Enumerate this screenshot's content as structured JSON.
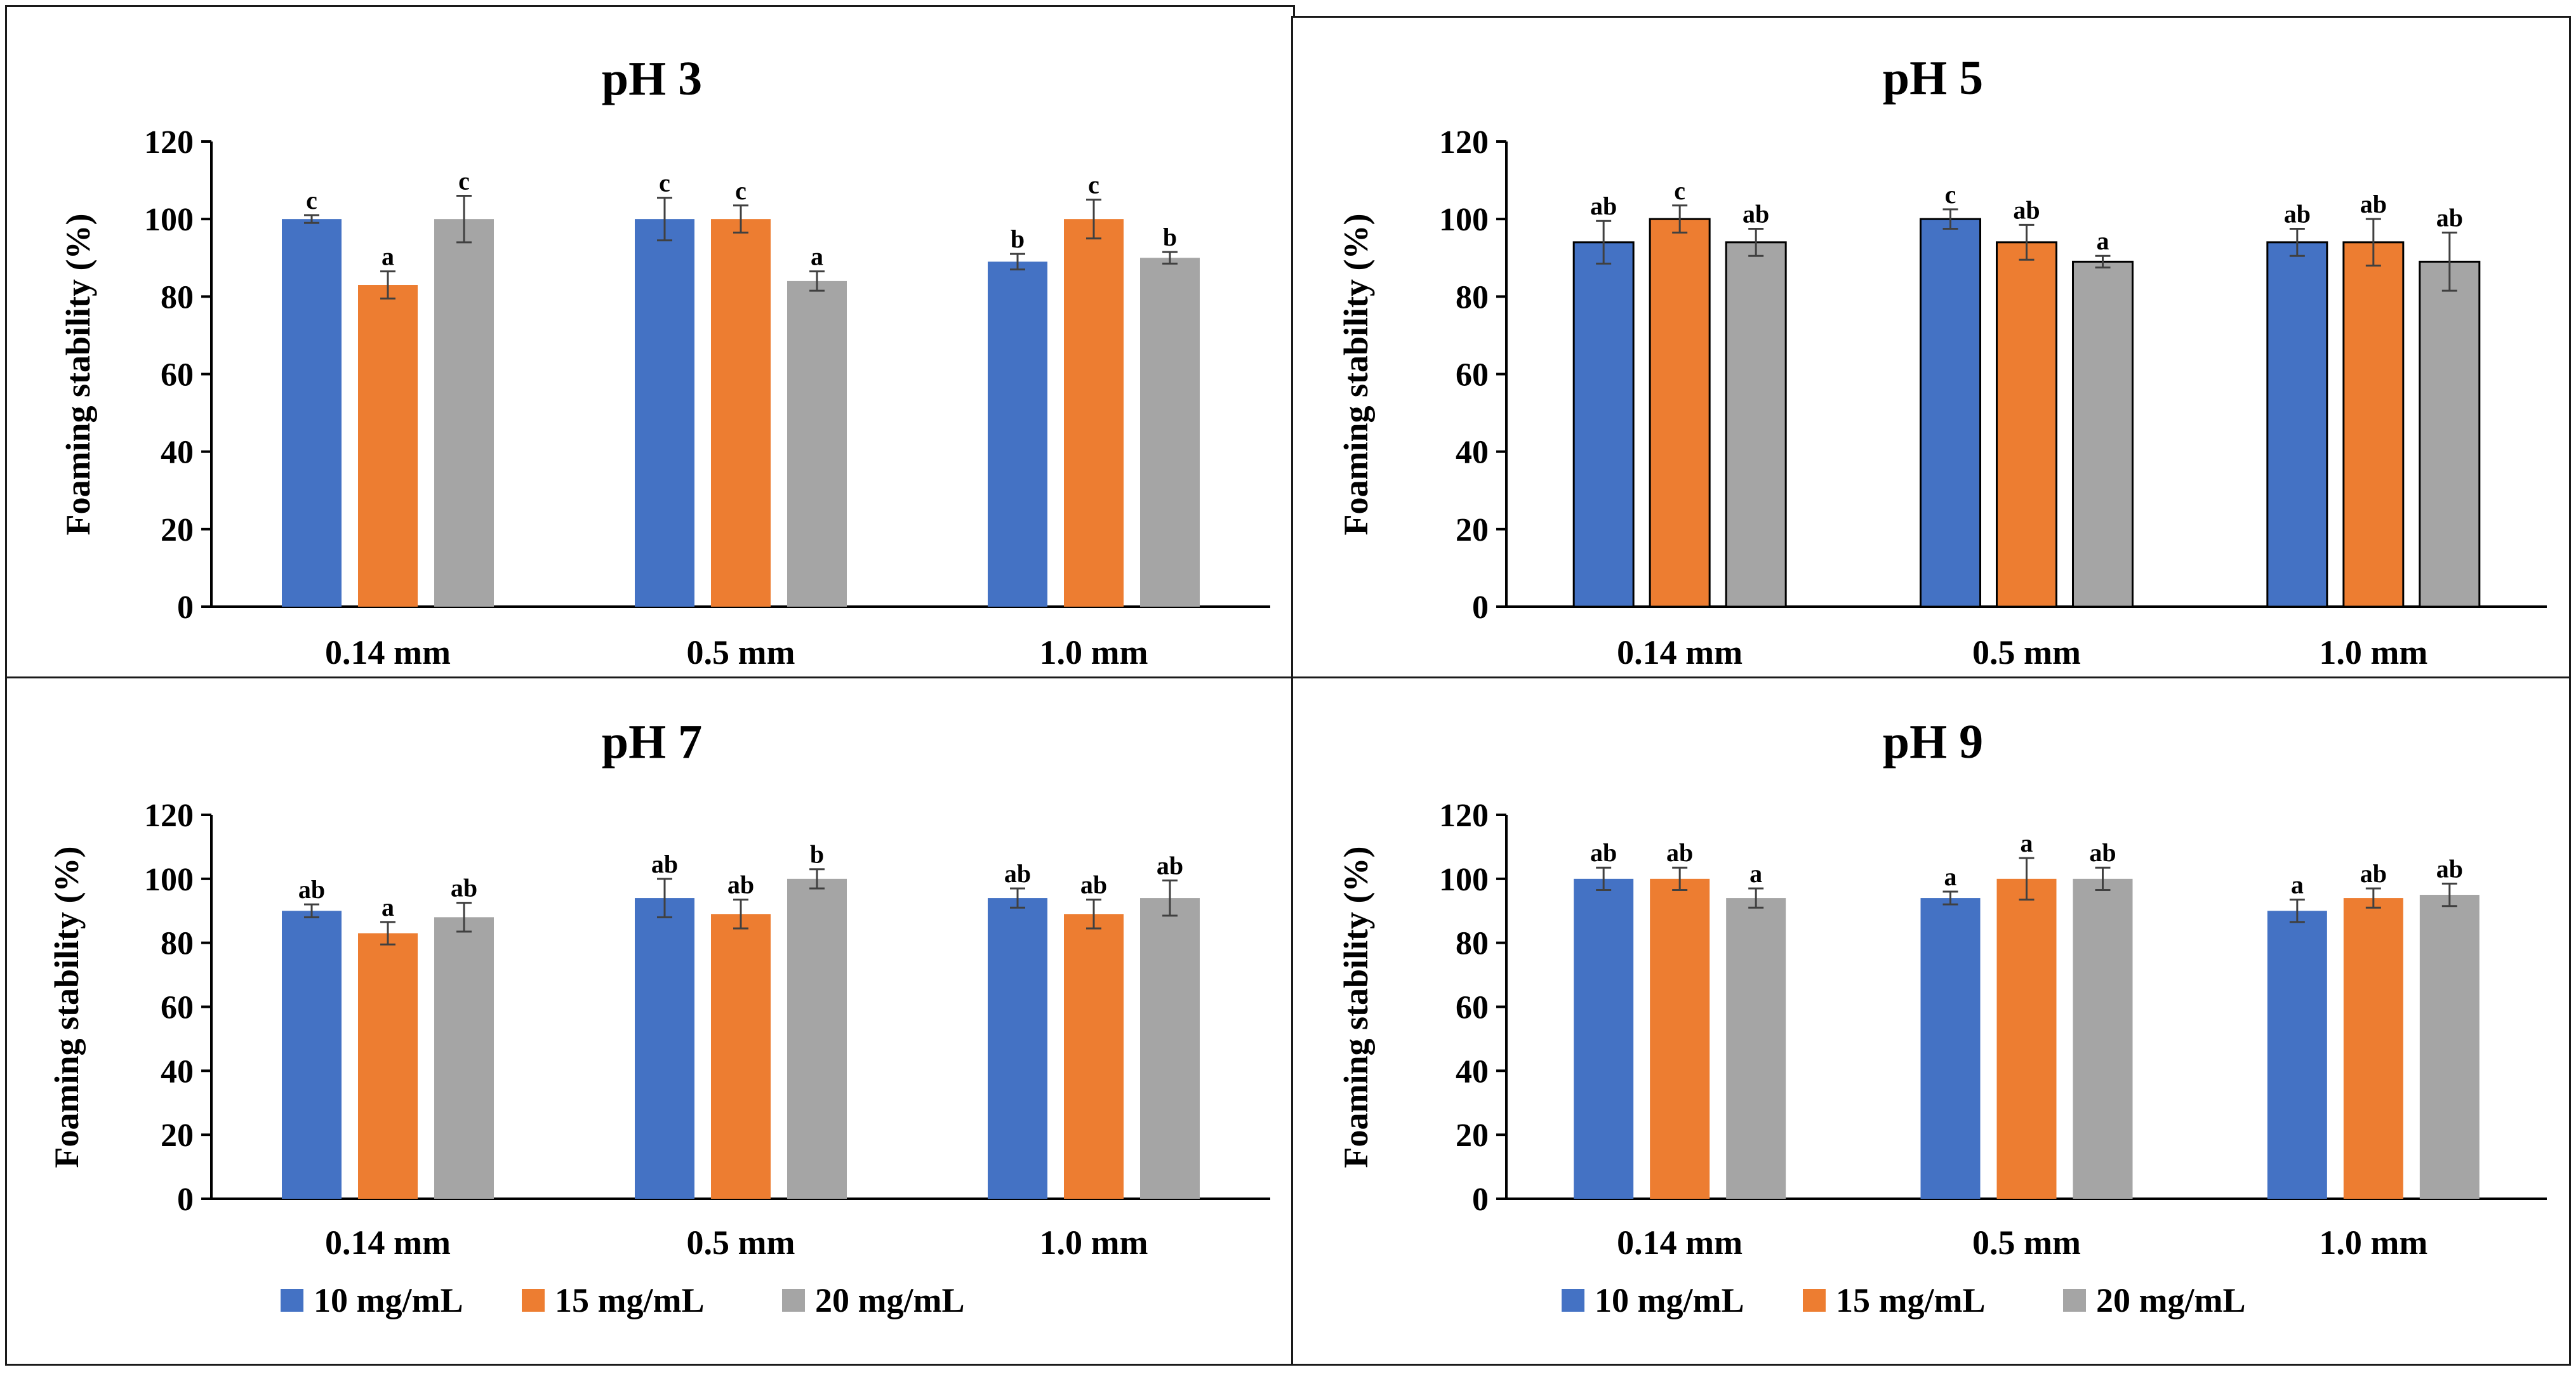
{
  "colors": {
    "series": [
      "#4472C4",
      "#ED7D31",
      "#A5A5A5"
    ],
    "axis": "#000000",
    "errorbar": "#404040"
  },
  "legend": [
    "10 mg/mL",
    "15 mg/mL",
    "20 mg/mL"
  ],
  "chart_data": [
    {
      "type": "bar",
      "title": "pH 3",
      "ylabel": "Foaming stability (%)",
      "xlabel": "",
      "ylim": [
        0,
        120
      ],
      "yticks": [
        0,
        20,
        40,
        60,
        80,
        100,
        120
      ],
      "grid": false,
      "legend": false,
      "bar_outline": false,
      "categories": [
        "0.14 mm",
        "0.5 mm",
        "1.0 mm"
      ],
      "series": [
        {
          "name": "10 mg/mL",
          "values": [
            100,
            100,
            89
          ],
          "errors": [
            1,
            5.5,
            2
          ],
          "labels": [
            "c",
            "c",
            "b"
          ]
        },
        {
          "name": "15 mg/mL",
          "values": [
            83,
            100,
            100
          ],
          "errors": [
            3.5,
            3.5,
            5
          ],
          "labels": [
            "a",
            "c",
            "c"
          ]
        },
        {
          "name": "20 mg/mL",
          "values": [
            100,
            84,
            90
          ],
          "errors": [
            6,
            2.5,
            1.5
          ],
          "labels": [
            "c",
            "a",
            "b"
          ]
        }
      ]
    },
    {
      "type": "bar",
      "title": "pH 5",
      "ylabel": "Foaming stability (%)",
      "xlabel": "",
      "ylim": [
        0,
        120
      ],
      "yticks": [
        0,
        20,
        40,
        60,
        80,
        100,
        120
      ],
      "grid": false,
      "legend": false,
      "bar_outline": true,
      "categories": [
        "0.14 mm",
        "0.5 mm",
        "1.0 mm"
      ],
      "series": [
        {
          "name": "10 mg/mL",
          "values": [
            94,
            100,
            94
          ],
          "errors": [
            5.5,
            2.5,
            3.5
          ],
          "labels": [
            "ab",
            "c",
            "ab"
          ]
        },
        {
          "name": "15 mg/mL",
          "values": [
            100,
            94,
            94
          ],
          "errors": [
            3.5,
            4.5,
            6
          ],
          "labels": [
            "c",
            "ab",
            "ab"
          ]
        },
        {
          "name": "20 mg/mL",
          "values": [
            94,
            89,
            89
          ],
          "errors": [
            3.5,
            1.5,
            7.5
          ],
          "labels": [
            "ab",
            "a",
            "ab"
          ]
        }
      ]
    },
    {
      "type": "bar",
      "title": "pH 7",
      "ylabel": "Foaming stability (%)",
      "xlabel": "",
      "ylim": [
        0,
        120
      ],
      "yticks": [
        0,
        20,
        40,
        60,
        80,
        100,
        120
      ],
      "grid": false,
      "legend": true,
      "bar_outline": false,
      "categories": [
        "0.14 mm",
        "0.5 mm",
        "1.0 mm"
      ],
      "series": [
        {
          "name": "10 mg/mL",
          "values": [
            90,
            94,
            94
          ],
          "errors": [
            2,
            6,
            3
          ],
          "labels": [
            "ab",
            "ab",
            "ab"
          ]
        },
        {
          "name": "15 mg/mL",
          "values": [
            83,
            89,
            89
          ],
          "errors": [
            3.5,
            4.5,
            4.5
          ],
          "labels": [
            "a",
            "ab",
            "ab"
          ]
        },
        {
          "name": "20 mg/mL",
          "values": [
            88,
            100,
            94
          ],
          "errors": [
            4.5,
            3,
            5.5
          ],
          "labels": [
            "ab",
            "b",
            "ab"
          ]
        }
      ]
    },
    {
      "type": "bar",
      "title": "pH 9",
      "ylabel": "Foaming stability (%)",
      "xlabel": "",
      "ylim": [
        0,
        120
      ],
      "yticks": [
        0,
        20,
        40,
        60,
        80,
        100,
        120
      ],
      "grid": false,
      "legend": true,
      "bar_outline": false,
      "categories": [
        "0.14 mm",
        "0.5 mm",
        "1.0 mm"
      ],
      "series": [
        {
          "name": "10 mg/mL",
          "values": [
            100,
            94,
            90
          ],
          "errors": [
            3.5,
            2,
            3.5
          ],
          "labels": [
            "ab",
            "a",
            "a"
          ]
        },
        {
          "name": "15 mg/mL",
          "values": [
            100,
            100,
            94
          ],
          "errors": [
            3.5,
            6.5,
            3
          ],
          "labels": [
            "ab",
            "a",
            "ab"
          ]
        },
        {
          "name": "20 mg/mL",
          "values": [
            94,
            100,
            95
          ],
          "errors": [
            3,
            3.5,
            3.5
          ],
          "labels": [
            "a",
            "ab",
            "ab"
          ]
        }
      ]
    }
  ]
}
